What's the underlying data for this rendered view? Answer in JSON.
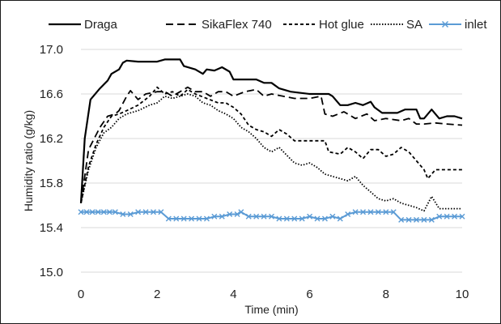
{
  "chart_data": {
    "type": "line",
    "title": "",
    "xlabel": "Time (min)",
    "ylabel": "Humidity ratio  (g/kg)",
    "xlim": [
      0,
      10
    ],
    "ylim": [
      15.0,
      17.0
    ],
    "x_ticks": [
      "0",
      "2",
      "4",
      "6",
      "8",
      "10"
    ],
    "y_ticks": [
      "15.0",
      "15.4",
      "15.8",
      "16.2",
      "16.6",
      "17.0"
    ],
    "grid": "horizontal",
    "legend_position": "top",
    "series": [
      {
        "name": "Draga",
        "color": "#000000",
        "style": "solid",
        "points": [
          [
            0,
            15.62
          ],
          [
            0.1,
            16.2
          ],
          [
            0.25,
            16.55
          ],
          [
            0.5,
            16.65
          ],
          [
            0.7,
            16.72
          ],
          [
            0.8,
            16.78
          ],
          [
            1.0,
            16.82
          ],
          [
            1.1,
            16.88
          ],
          [
            1.2,
            16.9
          ],
          [
            1.5,
            16.89
          ],
          [
            2.0,
            16.89
          ],
          [
            2.2,
            16.91
          ],
          [
            2.6,
            16.91
          ],
          [
            2.7,
            16.85
          ],
          [
            3.0,
            16.82
          ],
          [
            3.2,
            16.78
          ],
          [
            3.3,
            16.82
          ],
          [
            3.5,
            16.81
          ],
          [
            3.7,
            16.84
          ],
          [
            3.9,
            16.8
          ],
          [
            4.0,
            16.73
          ],
          [
            4.4,
            16.73
          ],
          [
            4.6,
            16.73
          ],
          [
            4.8,
            16.7
          ],
          [
            5.0,
            16.7
          ],
          [
            5.2,
            16.65
          ],
          [
            5.5,
            16.62
          ],
          [
            6.0,
            16.6
          ],
          [
            6.5,
            16.6
          ],
          [
            6.6,
            16.58
          ],
          [
            6.8,
            16.5
          ],
          [
            7.0,
            16.5
          ],
          [
            7.2,
            16.52
          ],
          [
            7.4,
            16.5
          ],
          [
            7.6,
            16.53
          ],
          [
            7.7,
            16.48
          ],
          [
            7.9,
            16.43
          ],
          [
            8.3,
            16.43
          ],
          [
            8.5,
            16.46
          ],
          [
            8.8,
            16.46
          ],
          [
            8.9,
            16.38
          ],
          [
            9.0,
            16.38
          ],
          [
            9.2,
            16.46
          ],
          [
            9.4,
            16.38
          ],
          [
            9.6,
            16.4
          ],
          [
            9.8,
            16.4
          ],
          [
            10.0,
            16.38
          ]
        ]
      },
      {
        "name": "SikaFlex 740",
        "color": "#000000",
        "style": "dashed",
        "points": [
          [
            0,
            15.62
          ],
          [
            0.2,
            16.1
          ],
          [
            0.5,
            16.3
          ],
          [
            0.7,
            16.4
          ],
          [
            0.9,
            16.42
          ],
          [
            1.0,
            16.45
          ],
          [
            1.2,
            16.58
          ],
          [
            1.3,
            16.63
          ],
          [
            1.5,
            16.55
          ],
          [
            1.7,
            16.6
          ],
          [
            2.0,
            16.62
          ],
          [
            2.2,
            16.62
          ],
          [
            2.4,
            16.58
          ],
          [
            2.6,
            16.62
          ],
          [
            2.8,
            16.66
          ],
          [
            3.0,
            16.62
          ],
          [
            3.2,
            16.62
          ],
          [
            3.4,
            16.58
          ],
          [
            3.6,
            16.62
          ],
          [
            3.8,
            16.62
          ],
          [
            4.0,
            16.58
          ],
          [
            4.3,
            16.62
          ],
          [
            4.6,
            16.64
          ],
          [
            4.8,
            16.58
          ],
          [
            5.0,
            16.6
          ],
          [
            5.3,
            16.58
          ],
          [
            5.6,
            16.56
          ],
          [
            6.0,
            16.56
          ],
          [
            6.3,
            16.58
          ],
          [
            6.4,
            16.42
          ],
          [
            6.6,
            16.4
          ],
          [
            6.9,
            16.44
          ],
          [
            7.2,
            16.38
          ],
          [
            7.5,
            16.42
          ],
          [
            7.7,
            16.36
          ],
          [
            8.0,
            16.38
          ],
          [
            8.4,
            16.36
          ],
          [
            8.6,
            16.38
          ],
          [
            8.8,
            16.33
          ],
          [
            9.0,
            16.33
          ],
          [
            9.3,
            16.34
          ],
          [
            9.6,
            16.33
          ],
          [
            10.0,
            16.32
          ]
        ]
      },
      {
        "name": "Hot glue",
        "color": "#000000",
        "style": "shortdash",
        "points": [
          [
            0,
            15.62
          ],
          [
            0.2,
            15.95
          ],
          [
            0.4,
            16.15
          ],
          [
            0.6,
            16.3
          ],
          [
            0.8,
            16.4
          ],
          [
            1.0,
            16.42
          ],
          [
            1.2,
            16.45
          ],
          [
            1.5,
            16.5
          ],
          [
            1.8,
            16.58
          ],
          [
            2.0,
            16.66
          ],
          [
            2.2,
            16.6
          ],
          [
            2.4,
            16.62
          ],
          [
            2.6,
            16.58
          ],
          [
            2.8,
            16.64
          ],
          [
            3.0,
            16.6
          ],
          [
            3.3,
            16.56
          ],
          [
            3.6,
            16.52
          ],
          [
            3.8,
            16.52
          ],
          [
            4.0,
            16.48
          ],
          [
            4.2,
            16.42
          ],
          [
            4.4,
            16.32
          ],
          [
            4.6,
            16.28
          ],
          [
            4.8,
            16.26
          ],
          [
            5.0,
            16.22
          ],
          [
            5.2,
            16.28
          ],
          [
            5.4,
            16.24
          ],
          [
            5.6,
            16.18
          ],
          [
            6.0,
            16.18
          ],
          [
            6.4,
            16.18
          ],
          [
            6.5,
            16.08
          ],
          [
            6.8,
            16.06
          ],
          [
            7.0,
            16.12
          ],
          [
            7.2,
            16.08
          ],
          [
            7.4,
            16.02
          ],
          [
            7.6,
            16.1
          ],
          [
            7.8,
            16.1
          ],
          [
            8.0,
            16.04
          ],
          [
            8.2,
            16.06
          ],
          [
            8.4,
            16.12
          ],
          [
            8.6,
            16.08
          ],
          [
            8.8,
            16.0
          ],
          [
            9.0,
            15.92
          ],
          [
            9.1,
            15.84
          ],
          [
            9.3,
            15.92
          ],
          [
            9.6,
            15.92
          ],
          [
            10.0,
            15.92
          ]
        ]
      },
      {
        "name": "SA",
        "color": "#000000",
        "style": "dotted",
        "points": [
          [
            0,
            15.62
          ],
          [
            0.2,
            15.92
          ],
          [
            0.4,
            16.12
          ],
          [
            0.6,
            16.25
          ],
          [
            0.8,
            16.3
          ],
          [
            1.0,
            16.38
          ],
          [
            1.2,
            16.42
          ],
          [
            1.5,
            16.45
          ],
          [
            1.8,
            16.5
          ],
          [
            2.0,
            16.52
          ],
          [
            2.2,
            16.58
          ],
          [
            2.4,
            16.56
          ],
          [
            2.6,
            16.58
          ],
          [
            2.8,
            16.6
          ],
          [
            3.0,
            16.58
          ],
          [
            3.2,
            16.52
          ],
          [
            3.4,
            16.5
          ],
          [
            3.6,
            16.45
          ],
          [
            3.8,
            16.42
          ],
          [
            4.0,
            16.38
          ],
          [
            4.2,
            16.3
          ],
          [
            4.4,
            16.26
          ],
          [
            4.6,
            16.2
          ],
          [
            4.8,
            16.12
          ],
          [
            5.0,
            16.08
          ],
          [
            5.2,
            16.12
          ],
          [
            5.4,
            16.05
          ],
          [
            5.6,
            15.98
          ],
          [
            5.8,
            15.96
          ],
          [
            6.0,
            15.98
          ],
          [
            6.2,
            15.94
          ],
          [
            6.4,
            15.88
          ],
          [
            6.6,
            15.86
          ],
          [
            6.8,
            15.84
          ],
          [
            7.0,
            15.82
          ],
          [
            7.2,
            15.86
          ],
          [
            7.4,
            15.78
          ],
          [
            7.6,
            15.72
          ],
          [
            7.8,
            15.66
          ],
          [
            8.0,
            15.64
          ],
          [
            8.2,
            15.66
          ],
          [
            8.4,
            15.62
          ],
          [
            8.6,
            15.6
          ],
          [
            8.8,
            15.58
          ],
          [
            9.0,
            15.55
          ],
          [
            9.2,
            15.68
          ],
          [
            9.4,
            15.57
          ],
          [
            9.6,
            15.57
          ],
          [
            10.0,
            15.57
          ]
        ]
      },
      {
        "name": "inlet",
        "color": "#5b9bd5",
        "style": "solid-x",
        "points": [
          [
            0,
            15.54
          ],
          [
            0.15,
            15.54
          ],
          [
            0.3,
            15.54
          ],
          [
            0.45,
            15.54
          ],
          [
            0.6,
            15.54
          ],
          [
            0.75,
            15.54
          ],
          [
            0.9,
            15.54
          ],
          [
            1.1,
            15.52
          ],
          [
            1.3,
            15.52
          ],
          [
            1.5,
            15.54
          ],
          [
            1.7,
            15.54
          ],
          [
            1.9,
            15.54
          ],
          [
            2.1,
            15.54
          ],
          [
            2.3,
            15.48
          ],
          [
            2.5,
            15.48
          ],
          [
            2.7,
            15.48
          ],
          [
            2.9,
            15.48
          ],
          [
            3.1,
            15.48
          ],
          [
            3.3,
            15.48
          ],
          [
            3.5,
            15.5
          ],
          [
            3.7,
            15.5
          ],
          [
            3.9,
            15.52
          ],
          [
            4.1,
            15.52
          ],
          [
            4.2,
            15.54
          ],
          [
            4.4,
            15.5
          ],
          [
            4.6,
            15.5
          ],
          [
            4.8,
            15.5
          ],
          [
            5.0,
            15.5
          ],
          [
            5.2,
            15.48
          ],
          [
            5.4,
            15.48
          ],
          [
            5.6,
            15.48
          ],
          [
            5.8,
            15.48
          ],
          [
            6.0,
            15.5
          ],
          [
            6.2,
            15.48
          ],
          [
            6.4,
            15.48
          ],
          [
            6.6,
            15.5
          ],
          [
            6.8,
            15.48
          ],
          [
            7.0,
            15.52
          ],
          [
            7.2,
            15.54
          ],
          [
            7.4,
            15.54
          ],
          [
            7.6,
            15.54
          ],
          [
            7.8,
            15.54
          ],
          [
            8.0,
            15.54
          ],
          [
            8.2,
            15.54
          ],
          [
            8.4,
            15.47
          ],
          [
            8.6,
            15.47
          ],
          [
            8.8,
            15.47
          ],
          [
            9.0,
            15.47
          ],
          [
            9.2,
            15.47
          ],
          [
            9.4,
            15.5
          ],
          [
            9.6,
            15.5
          ],
          [
            9.8,
            15.5
          ],
          [
            10.0,
            15.5
          ]
        ]
      }
    ]
  }
}
